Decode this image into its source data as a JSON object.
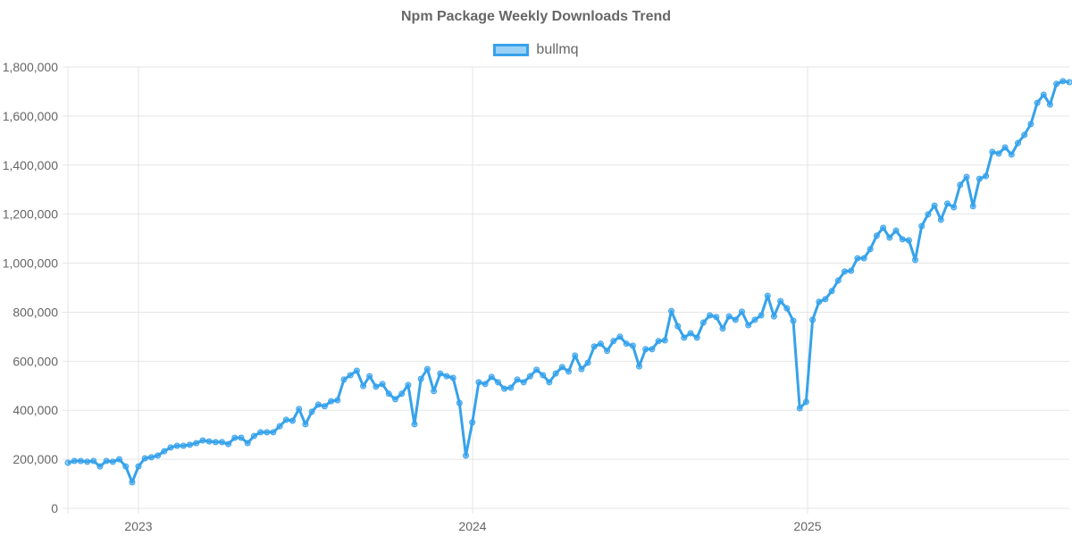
{
  "title": "Npm Package Weekly Downloads Trend",
  "legend": {
    "label": "bullmq",
    "color": "#36a2eb",
    "fill": "rgba(54,162,235,0.5)"
  },
  "y_axis": {
    "ticks": [
      "0",
      "200,000",
      "400,000",
      "600,000",
      "800,000",
      "1,000,000",
      "1,200,000",
      "1,400,000",
      "1,600,000",
      "1,800,000"
    ]
  },
  "x_axis": {
    "ticks": [
      "2023",
      "2024",
      "2025"
    ]
  },
  "chart_data": {
    "type": "line",
    "title": "Npm Package Weekly Downloads Trend",
    "xlabel": "",
    "ylabel": "",
    "ylim": [
      0,
      1800000
    ],
    "x_ticks": [
      "2023",
      "2024",
      "2025"
    ],
    "grid": true,
    "legend_position": "top",
    "series": [
      {
        "name": "bullmq",
        "color": "#36a2eb",
        "values": [
          186000,
          193000,
          193000,
          190000,
          193000,
          171000,
          193000,
          190000,
          200000,
          171000,
          106000,
          171000,
          204000,
          208000,
          215000,
          233000,
          248000,
          255000,
          255000,
          259000,
          266000,
          277000,
          273000,
          270000,
          270000,
          262000,
          288000,
          288000,
          266000,
          295000,
          310000,
          310000,
          310000,
          335000,
          361000,
          357000,
          405000,
          343000,
          394000,
          423000,
          416000,
          437000,
          441000,
          525000,
          543000,
          561000,
          499000,
          539000,
          496000,
          507000,
          467000,
          445000,
          467000,
          503000,
          343000,
          528000,
          568000,
          478000,
          550000,
          539000,
          532000,
          430000,
          215000,
          350000,
          514000,
          507000,
          536000,
          514000,
          488000,
          492000,
          525000,
          514000,
          539000,
          565000,
          543000,
          514000,
          550000,
          576000,
          558000,
          623000,
          568000,
          594000,
          660000,
          671000,
          642000,
          682000,
          700000,
          671000,
          663000,
          579000,
          649000,
          649000,
          682000,
          685000,
          805000,
          743000,
          696000,
          714000,
          696000,
          758000,
          787000,
          780000,
          733000,
          783000,
          769000,
          802000,
          747000,
          769000,
          787000,
          867000,
          783000,
          845000,
          816000,
          765000,
          408000,
          434000,
          769000,
          842000,
          853000,
          886000,
          929000,
          966000,
          969000,
          1020000,
          1020000,
          1057000,
          1112000,
          1144000,
          1104000,
          1133000,
          1097000,
          1093000,
          1013000,
          1151000,
          1199000,
          1235000,
          1177000,
          1243000,
          1228000,
          1319000,
          1352000,
          1232000,
          1344000,
          1355000,
          1454000,
          1447000,
          1472000,
          1443000,
          1490000,
          1523000,
          1567000,
          1654000,
          1687000,
          1647000,
          1731000,
          1742000,
          1738000
        ]
      }
    ]
  }
}
